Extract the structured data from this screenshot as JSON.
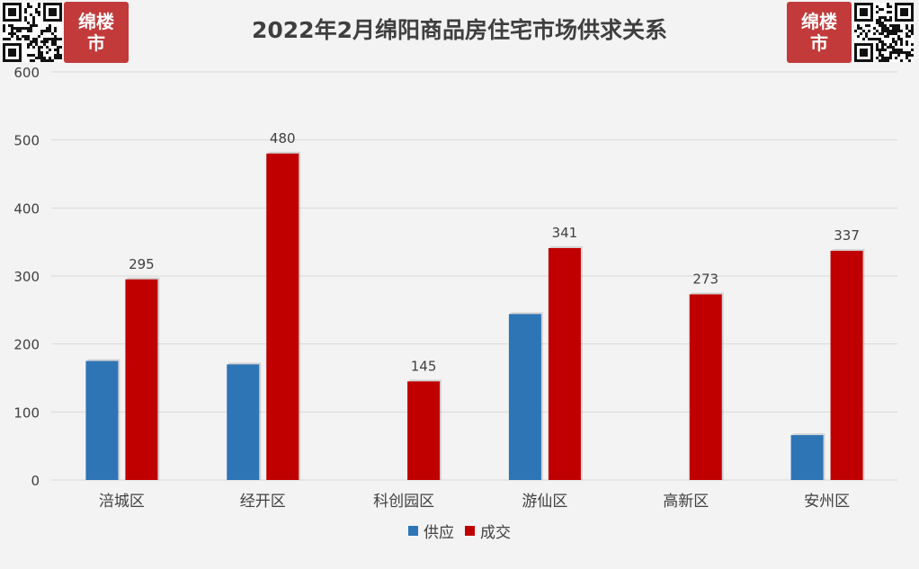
{
  "colors": {
    "supply": "#2e75b6",
    "deal": "#c00000",
    "grid": "#d9d9d9",
    "logo": "#c23a3a"
  },
  "logos": {
    "left_text": "绵楼市",
    "right_text": "绵楼市",
    "qr_icon": "qr-code-icon"
  },
  "chart_data": {
    "type": "bar",
    "title": "2022年2月绵阳商品房住宅市场供求关系",
    "categories": [
      "涪城区",
      "经开区",
      "科创园区",
      "游仙区",
      "高新区",
      "安州区"
    ],
    "series": [
      {
        "name": "供应",
        "values": [
          175,
          170,
          null,
          244,
          null,
          66
        ],
        "color": "#2e75b6",
        "labeled": false
      },
      {
        "name": "成交",
        "values": [
          295,
          480,
          145,
          341,
          273,
          337
        ],
        "color": "#c00000",
        "labeled": true
      }
    ],
    "ylim": [
      0,
      600
    ],
    "yticks": [
      0,
      100,
      200,
      300,
      400,
      500,
      600
    ],
    "grid": true,
    "legend": "bottom"
  }
}
